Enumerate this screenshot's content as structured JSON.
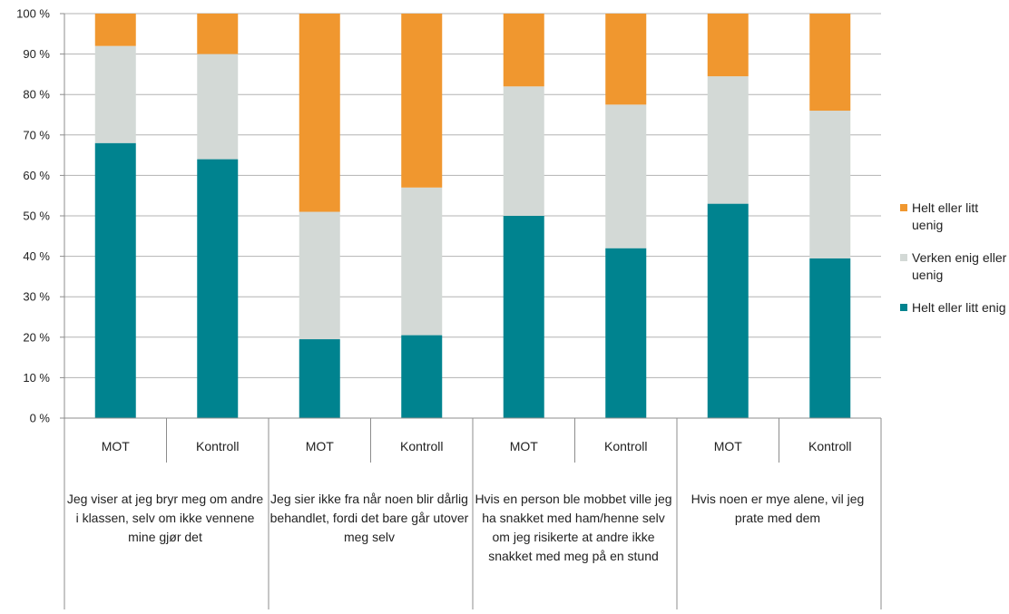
{
  "chart_data": {
    "type": "bar",
    "stacked": true,
    "ylim": [
      0,
      100
    ],
    "y_ticks": [
      "0 %",
      "10 %",
      "20 %",
      "30 %",
      "40 %",
      "50 %",
      "60 %",
      "70 %",
      "80 %",
      "90 %",
      "100 %"
    ],
    "grid": true,
    "legend_position": "right",
    "groups": [
      {
        "label": "Jeg viser at jeg bryr meg om andre i klassen, selv om ikke vennene mine gjør det",
        "subcategories": [
          "MOT",
          "Kontroll"
        ]
      },
      {
        "label": "Jeg sier ikke fra når noen blir dårlig behandlet, fordi det bare går utover meg selv",
        "subcategories": [
          "MOT",
          "Kontroll"
        ]
      },
      {
        "label": "Hvis en person ble mobbet ville jeg ha snakket med ham/henne selv om jeg risikerte at andre ikke snakket med meg på en stund",
        "subcategories": [
          "MOT",
          "Kontroll"
        ]
      },
      {
        "label": "Hvis noen er mye alene, vil jeg prate med dem",
        "subcategories": [
          "MOT",
          "Kontroll"
        ]
      }
    ],
    "series": [
      {
        "name": "Helt eller litt enig",
        "color": "#00838f",
        "values": [
          68,
          64,
          19.5,
          20.5,
          50,
          42,
          53,
          39.5
        ]
      },
      {
        "name": "Verken enig eller uenig",
        "color": "#d3d9d6",
        "values": [
          24,
          26,
          31.5,
          36.5,
          32,
          35.5,
          31.5,
          36.5
        ]
      },
      {
        "name": "Helt eller litt uenig",
        "color": "#f0972f",
        "values": [
          8,
          10,
          49,
          43,
          18,
          22.5,
          15.5,
          24
        ]
      }
    ]
  },
  "legend": [
    {
      "label": "Helt eller litt uenig",
      "color": "#f0972f"
    },
    {
      "label": "Verken enig eller uenig",
      "color": "#d3d9d6"
    },
    {
      "label": "Helt eller litt enig",
      "color": "#00838f"
    }
  ]
}
